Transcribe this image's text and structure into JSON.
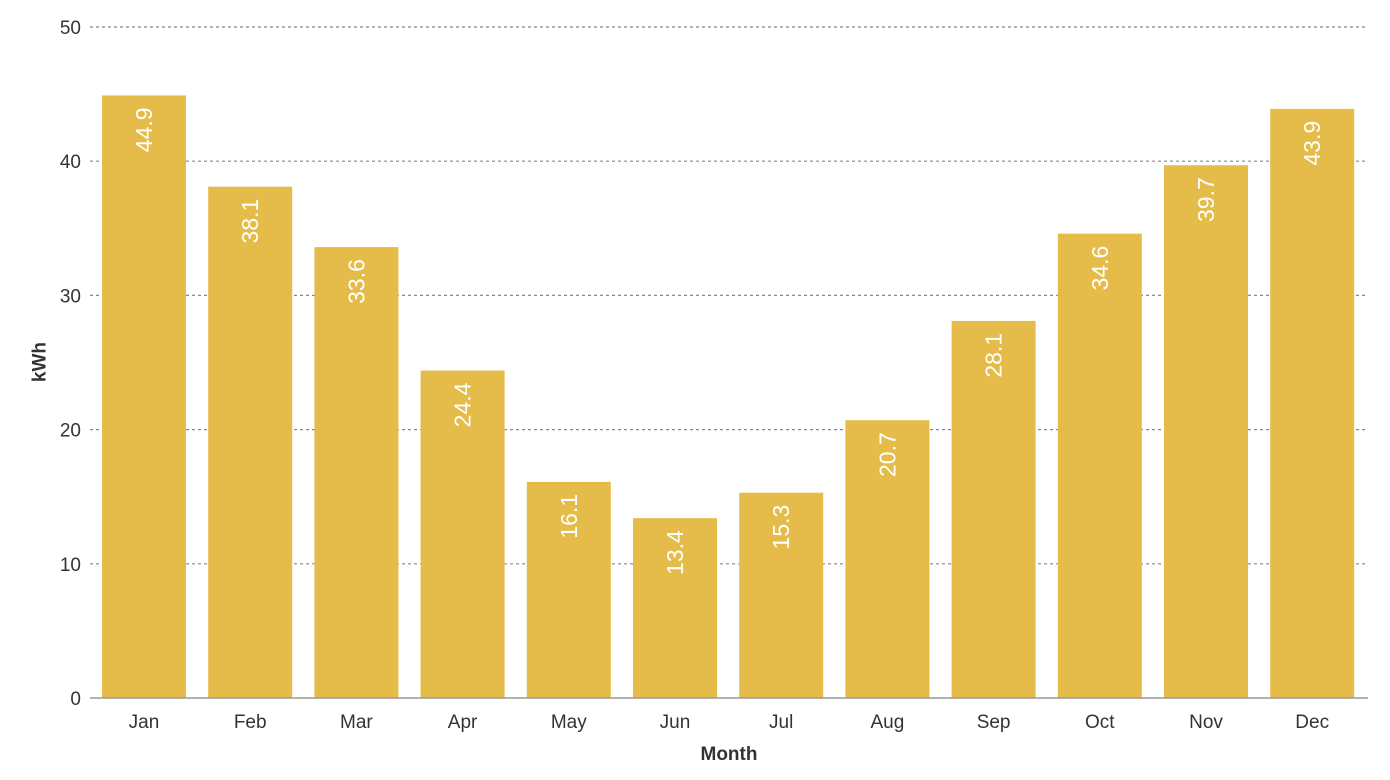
{
  "chart_data": {
    "type": "bar",
    "title": "",
    "xlabel": "Month",
    "ylabel": "kWh",
    "categories": [
      "Jan",
      "Feb",
      "Mar",
      "Apr",
      "May",
      "Jun",
      "Jul",
      "Aug",
      "Sep",
      "Oct",
      "Nov",
      "Dec"
    ],
    "values": [
      44.9,
      38.1,
      33.6,
      24.4,
      16.1,
      13.4,
      15.3,
      20.7,
      28.1,
      34.6,
      39.7,
      43.9
    ],
    "value_labels": [
      "44.9",
      "38.1",
      "33.6",
      "24.4",
      "16.1",
      "13.4",
      "15.3",
      "20.7",
      "28.1",
      "34.6",
      "39.7",
      "43.9"
    ],
    "ylim": [
      0,
      50
    ],
    "yticks": [
      0,
      10,
      20,
      30,
      40,
      50
    ],
    "ytick_labels": [
      "0",
      "10",
      "20",
      "30",
      "40",
      "50"
    ],
    "grid": true,
    "legend": false,
    "bar_color": "#E5BC49",
    "label_color": "#FFFFFF"
  }
}
